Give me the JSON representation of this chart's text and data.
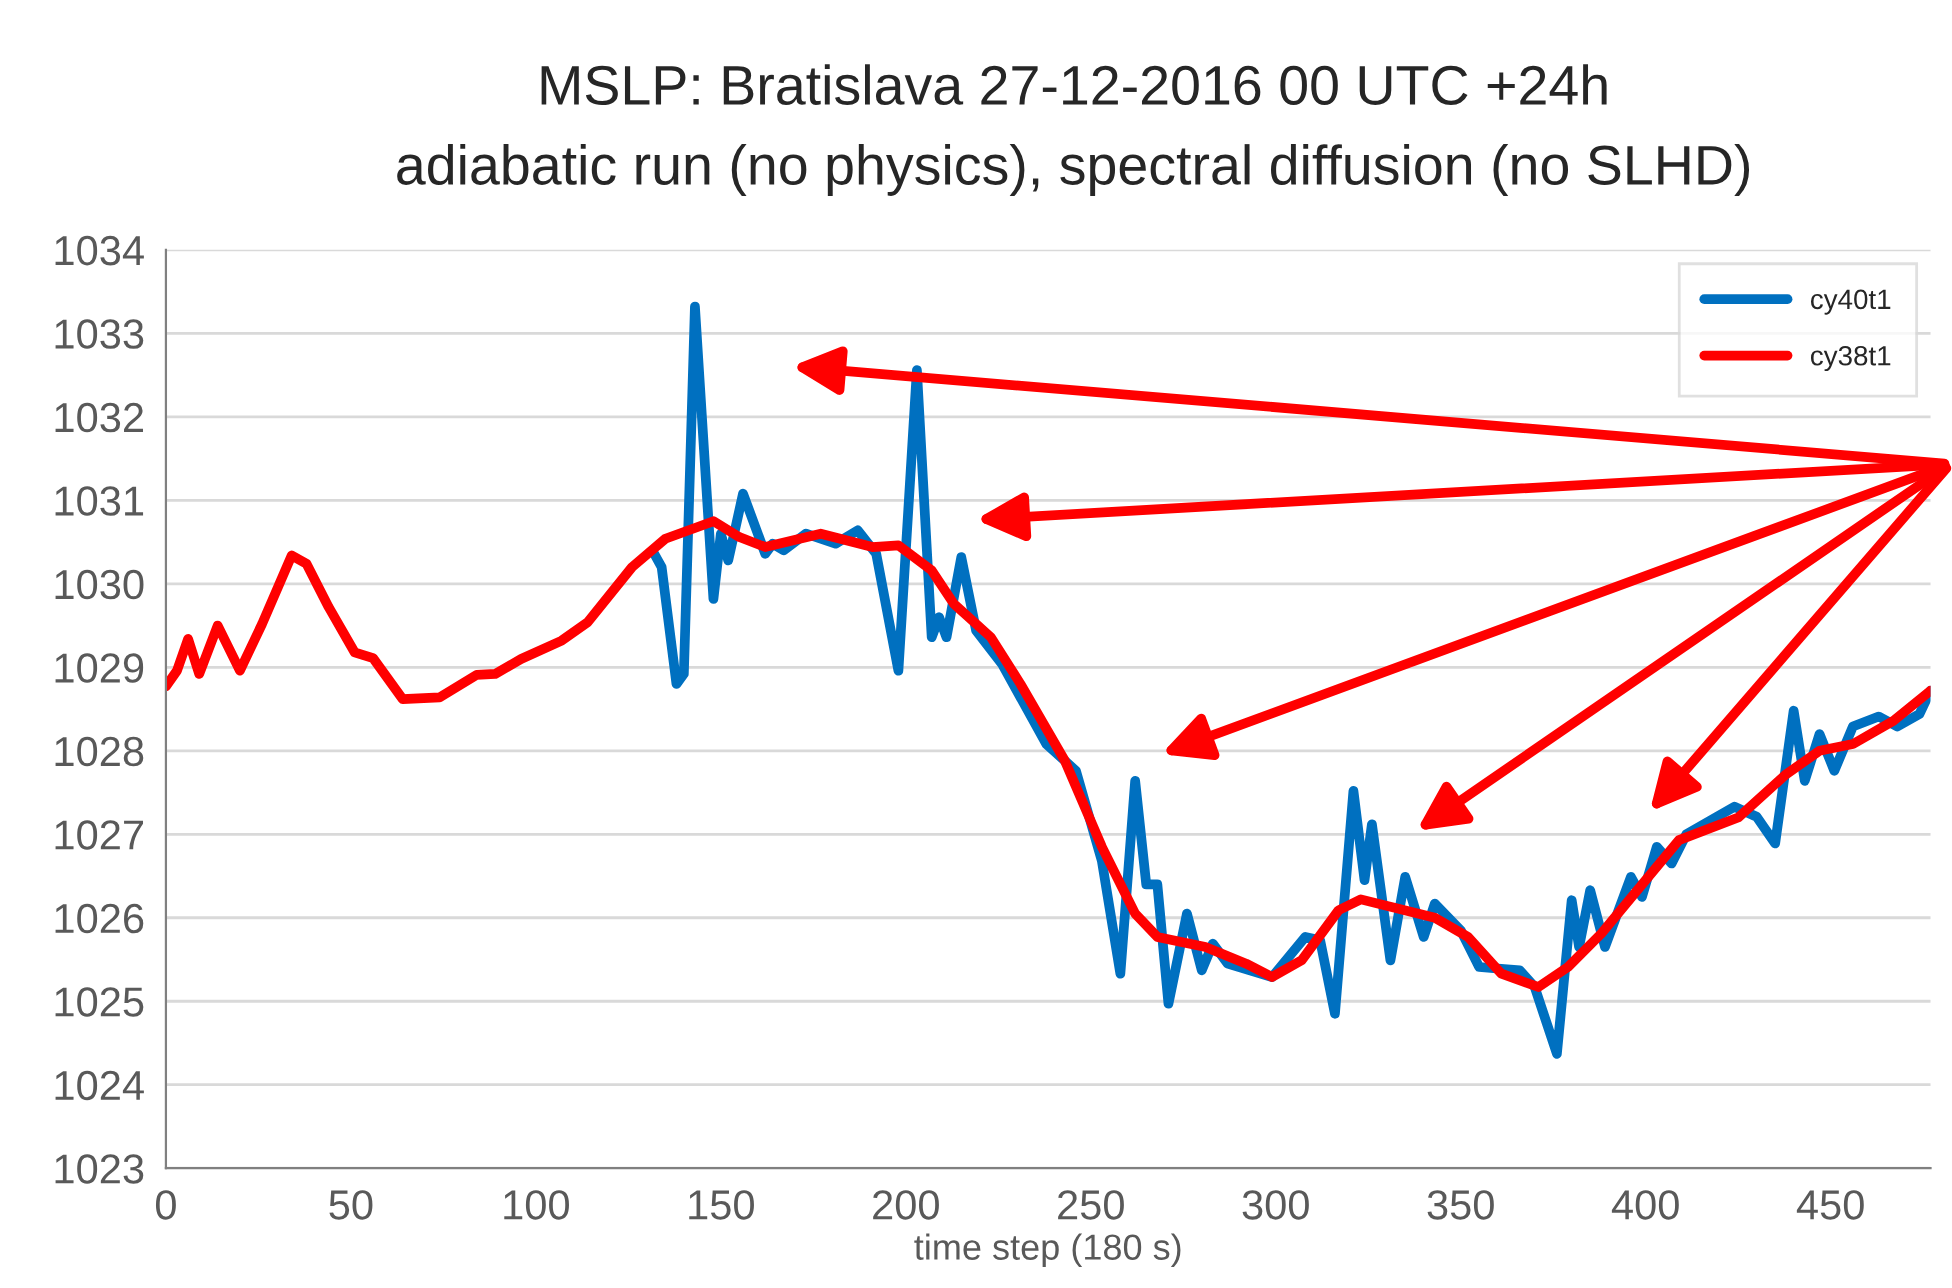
{
  "chart_data": {
    "type": "line",
    "title": "MSLP: Bratislava 27-12-2016 00 UTC +24h",
    "subtitle": "adiabatic run (no physics), spectral diffusion (no SLHD)",
    "xlabel": "time step (180 s)",
    "xlim": [
      0,
      477
    ],
    "xticks": [
      0,
      50,
      100,
      150,
      200,
      250,
      300,
      350,
      400,
      450
    ],
    "ylim": [
      1023,
      1034
    ],
    "yticks": [
      1023,
      1024,
      1025,
      1026,
      1027,
      1028,
      1029,
      1030,
      1031,
      1032,
      1033,
      1034
    ],
    "grid": "y",
    "legend": "top right",
    "marker": "none",
    "line_style": "solid",
    "series": [
      {
        "name": "cy40t1",
        "color": "#0070c0",
        "x": [
          132,
          134,
          138,
          140,
          143,
          148,
          150,
          152,
          156,
          162,
          164,
          167,
          173,
          181,
          187,
          192,
          198,
          203,
          207,
          209,
          211,
          215,
          219,
          226,
          238,
          246,
          253,
          258,
          262,
          265,
          268,
          271,
          276,
          280,
          283,
          287,
          299,
          308,
          312,
          316,
          321,
          324,
          326,
          331,
          335,
          340,
          343,
          350,
          355,
          366,
          370,
          376,
          380,
          382,
          385,
          389,
          396,
          399,
          403,
          407,
          411,
          424,
          430,
          435,
          440,
          443,
          447,
          451,
          456,
          463,
          468,
          474,
          477
        ],
        "values": [
          1030.36,
          1030.2,
          1028.8,
          1028.92,
          1033.32,
          1029.82,
          1030.6,
          1030.28,
          1031.08,
          1030.36,
          1030.48,
          1030.4,
          1030.6,
          1030.48,
          1030.64,
          1030.36,
          1028.96,
          1032.56,
          1029.36,
          1029.6,
          1029.36,
          1030.32,
          1029.44,
          1029.04,
          1028.08,
          1027.76,
          1026.68,
          1025.33,
          1027.64,
          1026.4,
          1026.4,
          1024.97,
          1026.05,
          1025.37,
          1025.69,
          1025.45,
          1025.29,
          1025.77,
          1025.73,
          1024.85,
          1027.52,
          1026.45,
          1027.12,
          1025.49,
          1026.49,
          1025.77,
          1026.17,
          1025.85,
          1025.41,
          1025.37,
          1025.17,
          1024.37,
          1026.21,
          1025.65,
          1026.33,
          1025.65,
          1026.49,
          1026.25,
          1026.85,
          1026.65,
          1027.0,
          1027.33,
          1027.21,
          1026.89,
          1028.48,
          1027.64,
          1028.2,
          1027.76,
          1028.29,
          1028.41,
          1028.29,
          1028.44,
          1028.72
        ]
      },
      {
        "name": "cy38t1",
        "color": "#ff0000",
        "x": [
          0,
          3,
          6,
          9,
          14,
          20,
          26,
          34,
          38,
          44,
          51,
          56,
          64,
          74,
          84,
          89,
          96,
          107,
          114,
          126,
          135,
          148,
          155,
          162,
          177,
          191,
          198,
          207,
          213,
          223,
          231,
          243,
          253,
          262,
          268,
          281,
          292,
          299,
          307,
          317,
          323,
          343,
          352,
          361,
          371,
          379,
          388,
          400,
          409,
          425,
          438,
          447,
          456,
          467,
          477
        ],
        "values": [
          1028.77,
          1028.96,
          1029.34,
          1028.92,
          1029.5,
          1028.96,
          1029.52,
          1030.34,
          1030.24,
          1029.72,
          1029.18,
          1029.11,
          1028.62,
          1028.64,
          1028.91,
          1028.92,
          1029.1,
          1029.32,
          1029.54,
          1030.2,
          1030.54,
          1030.75,
          1030.56,
          1030.44,
          1030.6,
          1030.44,
          1030.46,
          1030.16,
          1029.76,
          1029.36,
          1028.8,
          1027.88,
          1026.85,
          1026.05,
          1025.77,
          1025.65,
          1025.45,
          1025.29,
          1025.49,
          1026.09,
          1026.22,
          1026.0,
          1025.77,
          1025.33,
          1025.17,
          1025.41,
          1025.81,
          1026.45,
          1026.93,
          1027.2,
          1027.72,
          1028.0,
          1028.08,
          1028.36,
          1028.72
        ]
      }
    ]
  }
}
